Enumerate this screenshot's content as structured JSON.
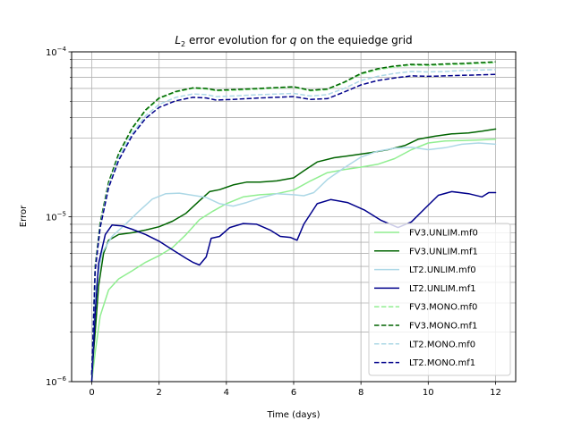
{
  "chart_data": {
    "type": "line",
    "title_prefix": "L",
    "title_subscript": "2",
    "title_middle": " error evolution for ",
    "title_var": "q",
    "title_suffix": " on the equiedge grid",
    "xlabel": "Time (days)",
    "ylabel": "Error",
    "xlim": [
      -0.6,
      12.6
    ],
    "ylim": [
      1e-06,
      0.0001
    ],
    "yscale": "log",
    "grid": true,
    "legend_position": "lower right",
    "x_ticks": [
      "0",
      "2",
      "4",
      "6",
      "8",
      "10",
      "12"
    ],
    "y_ticks": [
      {
        "value": 1e-06,
        "base": "10",
        "exp": "−6"
      },
      {
        "value": 1e-05,
        "base": "10",
        "exp": "−5"
      },
      {
        "value": 0.0001,
        "base": "10",
        "exp": "−4"
      }
    ],
    "series": [
      {
        "name": "FV3.UNLIM.mf0",
        "color": "#90ee90",
        "dash": "solid",
        "points": [
          [
            0,
            1e-06
          ],
          [
            0.1,
            1.5e-06
          ],
          [
            0.25,
            2.5e-06
          ],
          [
            0.5,
            3.6e-06
          ],
          [
            0.8,
            4.2e-06
          ],
          [
            1.2,
            4.7e-06
          ],
          [
            1.6,
            5.3e-06
          ],
          [
            2.0,
            5.8e-06
          ],
          [
            2.4,
            6.5e-06
          ],
          [
            2.8,
            7.8e-06
          ],
          [
            3.2,
            9.6e-06
          ],
          [
            3.6,
            1.08e-05
          ],
          [
            4.0,
            1.2e-05
          ],
          [
            4.5,
            1.32e-05
          ],
          [
            5.0,
            1.36e-05
          ],
          [
            5.5,
            1.38e-05
          ],
          [
            6.0,
            1.45e-05
          ],
          [
            6.5,
            1.65e-05
          ],
          [
            7.0,
            1.85e-05
          ],
          [
            7.5,
            1.93e-05
          ],
          [
            8.0,
            2e-05
          ],
          [
            8.5,
            2.08e-05
          ],
          [
            9.0,
            2.25e-05
          ],
          [
            9.5,
            2.55e-05
          ],
          [
            10.0,
            2.8e-05
          ],
          [
            10.5,
            2.88e-05
          ],
          [
            11.0,
            2.9e-05
          ],
          [
            11.5,
            2.92e-05
          ],
          [
            12.0,
            2.95e-05
          ]
        ]
      },
      {
        "name": "FV3.UNLIM.mf1",
        "color": "#006400",
        "dash": "solid",
        "points": [
          [
            0,
            1.1e-06
          ],
          [
            0.1,
            2e-06
          ],
          [
            0.2,
            3.8e-06
          ],
          [
            0.35,
            6e-06
          ],
          [
            0.5,
            7.2e-06
          ],
          [
            0.8,
            7.8e-06
          ],
          [
            1.2,
            8e-06
          ],
          [
            1.6,
            8.3e-06
          ],
          [
            2.0,
            8.7e-06
          ],
          [
            2.4,
            9.4e-06
          ],
          [
            2.8,
            1.05e-05
          ],
          [
            3.2,
            1.25e-05
          ],
          [
            3.5,
            1.42e-05
          ],
          [
            3.8,
            1.46e-05
          ],
          [
            4.2,
            1.56e-05
          ],
          [
            4.6,
            1.62e-05
          ],
          [
            5.0,
            1.62e-05
          ],
          [
            5.5,
            1.65e-05
          ],
          [
            6.0,
            1.72e-05
          ],
          [
            6.3,
            1.9e-05
          ],
          [
            6.7,
            2.15e-05
          ],
          [
            7.2,
            2.28e-05
          ],
          [
            7.7,
            2.35e-05
          ],
          [
            8.3,
            2.45e-05
          ],
          [
            8.8,
            2.55e-05
          ],
          [
            9.3,
            2.7e-05
          ],
          [
            9.7,
            2.95e-05
          ],
          [
            10.2,
            3.08e-05
          ],
          [
            10.7,
            3.18e-05
          ],
          [
            11.2,
            3.22e-05
          ],
          [
            11.6,
            3.3e-05
          ],
          [
            12.0,
            3.4e-05
          ]
        ]
      },
      {
        "name": "LT2.UNLIM.mf0",
        "color": "#add8e6",
        "dash": "solid",
        "points": [
          [
            0,
            1e-06
          ],
          [
            0.1,
            3.5e-06
          ],
          [
            0.3,
            6e-06
          ],
          [
            0.6,
            7.6e-06
          ],
          [
            1.0,
            9e-06
          ],
          [
            1.4,
            1.08e-05
          ],
          [
            1.8,
            1.28e-05
          ],
          [
            2.2,
            1.38e-05
          ],
          [
            2.6,
            1.39e-05
          ],
          [
            3.0,
            1.35e-05
          ],
          [
            3.4,
            1.31e-05
          ],
          [
            3.8,
            1.2e-05
          ],
          [
            4.2,
            1.16e-05
          ],
          [
            4.6,
            1.22e-05
          ],
          [
            5.0,
            1.3e-05
          ],
          [
            5.5,
            1.38e-05
          ],
          [
            6.0,
            1.36e-05
          ],
          [
            6.3,
            1.34e-05
          ],
          [
            6.6,
            1.4e-05
          ],
          [
            7.0,
            1.68e-05
          ],
          [
            7.5,
            1.98e-05
          ],
          [
            8.0,
            2.3e-05
          ],
          [
            8.5,
            2.5e-05
          ],
          [
            9.0,
            2.6e-05
          ],
          [
            9.5,
            2.64e-05
          ],
          [
            10.0,
            2.55e-05
          ],
          [
            10.5,
            2.62e-05
          ],
          [
            11.0,
            2.75e-05
          ],
          [
            11.5,
            2.8e-05
          ],
          [
            12.0,
            2.75e-05
          ]
        ]
      },
      {
        "name": "LT2.UNLIM.mf1",
        "color": "#00008b",
        "dash": "solid",
        "points": [
          [
            0,
            1e-06
          ],
          [
            0.1,
            2.6e-06
          ],
          [
            0.2,
            5.2e-06
          ],
          [
            0.4,
            7.8e-06
          ],
          [
            0.6,
            8.9e-06
          ],
          [
            0.9,
            8.8e-06
          ],
          [
            1.2,
            8.4e-06
          ],
          [
            1.6,
            7.8e-06
          ],
          [
            2.0,
            7.1e-06
          ],
          [
            2.4,
            6.3e-06
          ],
          [
            2.8,
            5.6e-06
          ],
          [
            3.0,
            5.3e-06
          ],
          [
            3.2,
            5.1e-06
          ],
          [
            3.4,
            5.7e-06
          ],
          [
            3.55,
            7.4e-06
          ],
          [
            3.8,
            7.6e-06
          ],
          [
            4.1,
            8.6e-06
          ],
          [
            4.5,
            9.1e-06
          ],
          [
            4.9,
            9e-06
          ],
          [
            5.3,
            8.3e-06
          ],
          [
            5.6,
            7.6e-06
          ],
          [
            5.9,
            7.5e-06
          ],
          [
            6.1,
            7.2e-06
          ],
          [
            6.3,
            9e-06
          ],
          [
            6.7,
            1.2e-05
          ],
          [
            7.1,
            1.27e-05
          ],
          [
            7.6,
            1.22e-05
          ],
          [
            8.1,
            1.1e-05
          ],
          [
            8.6,
            9.5e-06
          ],
          [
            9.1,
            8.6e-06
          ],
          [
            9.5,
            9.3e-06
          ],
          [
            9.9,
            1.12e-05
          ],
          [
            10.3,
            1.35e-05
          ],
          [
            10.7,
            1.42e-05
          ],
          [
            11.2,
            1.38e-05
          ],
          [
            11.6,
            1.32e-05
          ],
          [
            11.8,
            1.4e-05
          ],
          [
            12.0,
            1.4e-05
          ]
        ]
      },
      {
        "name": "FV3.MONO.mf0",
        "color": "#90ee90",
        "dash": "dashed",
        "points": [
          [
            0,
            1.1e-06
          ],
          [
            0.1,
            5e-06
          ],
          [
            0.25,
            9e-06
          ],
          [
            0.5,
            1.6e-05
          ],
          [
            0.8,
            2.4e-05
          ],
          [
            1.2,
            3.4e-05
          ],
          [
            1.6,
            4.4e-05
          ],
          [
            2.0,
            5.2e-05
          ],
          [
            2.5,
            5.7e-05
          ],
          [
            3.0,
            6e-05
          ],
          [
            3.4,
            5.95e-05
          ],
          [
            3.7,
            5.8e-05
          ],
          [
            4.2,
            5.85e-05
          ],
          [
            5.0,
            5.95e-05
          ],
          [
            6.0,
            6.1e-05
          ],
          [
            6.5,
            5.8e-05
          ],
          [
            7.0,
            5.9e-05
          ],
          [
            7.5,
            6.5e-05
          ],
          [
            8.0,
            7.3e-05
          ],
          [
            8.5,
            7.8e-05
          ],
          [
            9.0,
            8.1e-05
          ],
          [
            9.5,
            8.3e-05
          ],
          [
            10.0,
            8.25e-05
          ],
          [
            10.5,
            8.35e-05
          ],
          [
            11.0,
            8.4e-05
          ],
          [
            11.5,
            8.5e-05
          ],
          [
            12.0,
            8.6e-05
          ]
        ]
      },
      {
        "name": "FV3.MONO.mf1",
        "color": "#006400",
        "dash": "dashed",
        "points": [
          [
            0,
            1.1e-06
          ],
          [
            0.1,
            5e-06
          ],
          [
            0.25,
            9.2e-06
          ],
          [
            0.5,
            1.62e-05
          ],
          [
            0.8,
            2.42e-05
          ],
          [
            1.2,
            3.45e-05
          ],
          [
            1.6,
            4.45e-05
          ],
          [
            2.0,
            5.25e-05
          ],
          [
            2.5,
            5.75e-05
          ],
          [
            3.0,
            6.05e-05
          ],
          [
            3.4,
            6e-05
          ],
          [
            3.7,
            5.85e-05
          ],
          [
            4.2,
            5.9e-05
          ],
          [
            5.0,
            6e-05
          ],
          [
            6.0,
            6.15e-05
          ],
          [
            6.5,
            5.85e-05
          ],
          [
            7.0,
            5.95e-05
          ],
          [
            7.5,
            6.55e-05
          ],
          [
            8.0,
            7.4e-05
          ],
          [
            8.5,
            7.9e-05
          ],
          [
            9.0,
            8.2e-05
          ],
          [
            9.5,
            8.4e-05
          ],
          [
            10.0,
            8.35e-05
          ],
          [
            10.5,
            8.45e-05
          ],
          [
            11.0,
            8.5e-05
          ],
          [
            11.5,
            8.6e-05
          ],
          [
            12.0,
            8.7e-05
          ]
        ]
      },
      {
        "name": "LT2.MONO.mf0",
        "color": "#add8e6",
        "dash": "dashed",
        "points": [
          [
            0,
            1.1e-06
          ],
          [
            0.1,
            4.8e-06
          ],
          [
            0.25,
            8.8e-06
          ],
          [
            0.5,
            1.55e-05
          ],
          [
            0.8,
            2.3e-05
          ],
          [
            1.2,
            3.2e-05
          ],
          [
            1.6,
            4.1e-05
          ],
          [
            2.0,
            4.8e-05
          ],
          [
            2.5,
            5.3e-05
          ],
          [
            3.0,
            5.55e-05
          ],
          [
            3.4,
            5.5e-05
          ],
          [
            3.7,
            5.35e-05
          ],
          [
            4.2,
            5.4e-05
          ],
          [
            5.0,
            5.5e-05
          ],
          [
            6.0,
            5.6e-05
          ],
          [
            6.5,
            5.4e-05
          ],
          [
            7.0,
            5.5e-05
          ],
          [
            7.5,
            6e-05
          ],
          [
            8.0,
            6.7e-05
          ],
          [
            8.5,
            7.1e-05
          ],
          [
            9.0,
            7.4e-05
          ],
          [
            9.5,
            7.6e-05
          ],
          [
            10.0,
            7.55e-05
          ],
          [
            10.5,
            7.6e-05
          ],
          [
            11.0,
            7.7e-05
          ],
          [
            11.5,
            7.75e-05
          ],
          [
            12.0,
            7.8e-05
          ]
        ]
      },
      {
        "name": "LT2.MONO.mf1",
        "color": "#00008b",
        "dash": "dashed",
        "points": [
          [
            0,
            1.1e-06
          ],
          [
            0.1,
            4.7e-06
          ],
          [
            0.25,
            8.6e-06
          ],
          [
            0.5,
            1.5e-05
          ],
          [
            0.8,
            2.2e-05
          ],
          [
            1.2,
            3.1e-05
          ],
          [
            1.6,
            3.95e-05
          ],
          [
            2.0,
            4.6e-05
          ],
          [
            2.5,
            5.05e-05
          ],
          [
            3.0,
            5.3e-05
          ],
          [
            3.4,
            5.25e-05
          ],
          [
            3.7,
            5.1e-05
          ],
          [
            4.2,
            5.15e-05
          ],
          [
            5.0,
            5.25e-05
          ],
          [
            6.0,
            5.35e-05
          ],
          [
            6.5,
            5.15e-05
          ],
          [
            7.0,
            5.2e-05
          ],
          [
            7.5,
            5.7e-05
          ],
          [
            8.0,
            6.3e-05
          ],
          [
            8.5,
            6.7e-05
          ],
          [
            9.0,
            6.95e-05
          ],
          [
            9.5,
            7.15e-05
          ],
          [
            10.0,
            7.1e-05
          ],
          [
            10.5,
            7.15e-05
          ],
          [
            11.0,
            7.2e-05
          ],
          [
            11.5,
            7.25e-05
          ],
          [
            12.0,
            7.3e-05
          ]
        ]
      }
    ]
  }
}
